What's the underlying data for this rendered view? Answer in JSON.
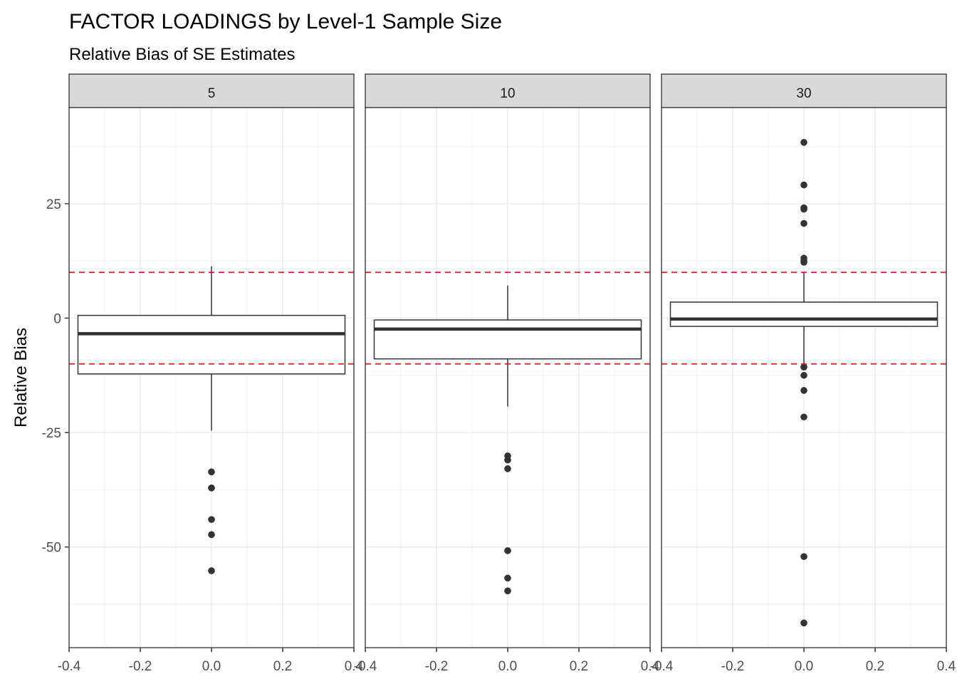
{
  "chart_data": {
    "type": "box",
    "title": "FACTOR LOADINGS by Level-1 Sample Size",
    "subtitle": "Relative Bias of SE Estimates",
    "xlabel": "",
    "ylabel": "Relative Bias",
    "xlim": [
      -0.4,
      0.4
    ],
    "x_ticks": [
      "-0.4",
      "-0.2",
      "0.0",
      "0.2",
      "0.4"
    ],
    "ylim": [
      -72,
      46
    ],
    "y_ticks": [
      25,
      0,
      -25,
      -50
    ],
    "y_tick_labels": [
      "25",
      "0",
      "-25",
      "-50"
    ],
    "reference_lines": [
      10,
      -10
    ],
    "reference_line_color": "#e31a1c",
    "grid": true,
    "facets": [
      {
        "label": "5",
        "box": {
          "q1": -12.2,
          "median": -3.4,
          "q3": 0.6,
          "whisker_low": -24.6,
          "whisker_high": 11.3
        },
        "outliers": [
          -33.6,
          -37.1,
          -44.0,
          -47.3,
          -55.2
        ]
      },
      {
        "label": "10",
        "box": {
          "q1": -8.9,
          "median": -2.4,
          "q3": -0.4,
          "whisker_low": -19.3,
          "whisker_high": 7.1
        },
        "outliers": [
          -30.1,
          -31.0,
          -32.9,
          -50.8,
          -56.8,
          -59.6
        ]
      },
      {
        "label": "30",
        "box": {
          "q1": -1.8,
          "median": -0.2,
          "q3": 3.5,
          "whisker_low": -9.9,
          "whisker_high": 10.1
        },
        "outliers": [
          38.4,
          29.1,
          24.1,
          23.8,
          20.7,
          13.1,
          12.6,
          12.2,
          -10.7,
          -12.5,
          -15.8,
          -21.6,
          -52.1,
          -66.6
        ]
      }
    ]
  }
}
